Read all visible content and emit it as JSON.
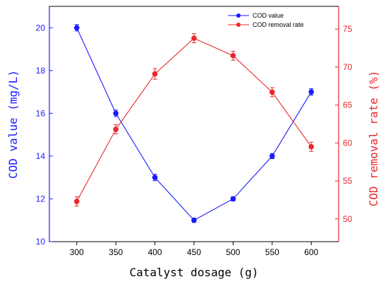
{
  "chart_data": {
    "type": "line",
    "x": [
      300,
      350,
      400,
      450,
      500,
      550,
      600
    ],
    "xlabel": "Catalyst dosage (g)",
    "xlim": [
      265,
      635
    ],
    "xticks": [
      300,
      350,
      400,
      450,
      500,
      550,
      600
    ],
    "y_left": {
      "label": "COD value (mg/L)",
      "lim": [
        10,
        21
      ],
      "ticks": [
        10,
        12,
        14,
        16,
        18,
        20
      ],
      "color": "#1a1aff"
    },
    "y_right": {
      "label": "COD removal rate (%)",
      "lim": [
        47,
        78
      ],
      "ticks": [
        50,
        55,
        60,
        65,
        70,
        75
      ],
      "color": "#e8282d"
    },
    "series": [
      {
        "name": "COD value",
        "axis": "left",
        "color": "#1a1aff",
        "values": [
          20.0,
          16.0,
          13.0,
          11.0,
          12.0,
          14.0,
          17.0
        ],
        "errors": [
          0.15,
          0.15,
          0.15,
          0.1,
          0.1,
          0.12,
          0.15
        ]
      },
      {
        "name": "COD removal rate",
        "axis": "right",
        "color": "#e8282d",
        "values": [
          52.3,
          61.8,
          69.1,
          73.8,
          71.5,
          66.7,
          59.5
        ],
        "errors": [
          0.6,
          0.6,
          0.7,
          0.6,
          0.6,
          0.6,
          0.6
        ]
      }
    ],
    "legend": "top-right",
    "grid": false
  }
}
